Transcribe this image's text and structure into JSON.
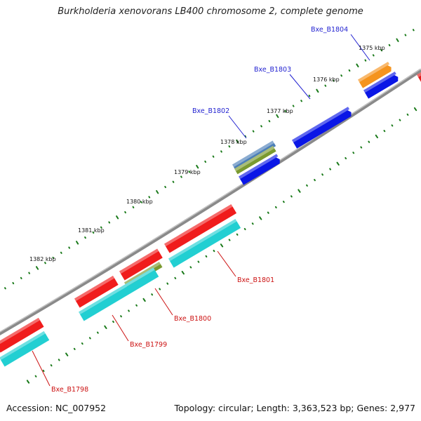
{
  "title": "Burkholderia xenovorans LB400 chromosome 2, complete genome",
  "footer": {
    "accession_label": "Accession:",
    "accession": "NC_007952",
    "topology_label": "Topology:",
    "topology": "circular",
    "length_label": "Length:",
    "length": "3,363,523 bp",
    "genes_label": "Genes:",
    "genes": "2,977"
  },
  "colors": {
    "backbone": "#8a8a8a",
    "tick_dots": "#1a7a1a",
    "forward_label": "#1f1fd0",
    "reverse_label": "#cc1111",
    "leader_forward": "#1f1fd0",
    "leader_reverse": "#cc1111",
    "gene_red": "#f01c1c",
    "gene_cyan": "#22cfd2",
    "gene_blue": "#0a16e6",
    "gene_orange": "#f5941e",
    "gene_olive": "#7a9a30",
    "gene_steel": "#4d7fb8",
    "gene_stub_red": "#e51a1a"
  },
  "ticks": [
    {
      "label": "1375 kbp",
      "leader": false
    },
    {
      "label": "1376 kbp",
      "leader": false
    },
    {
      "label": "1377 kbp",
      "leader": false
    },
    {
      "label": "1378 kbp",
      "leader": false
    },
    {
      "label": "1379 kbp",
      "leader": false
    },
    {
      "label": "1380 kbp",
      "leader": false
    },
    {
      "label": "1381 kbp",
      "leader": false
    },
    {
      "label": "1382 kbp",
      "leader": false
    }
  ],
  "genes": [
    {
      "label": "Bxe_B1804",
      "strand": "forward"
    },
    {
      "label": "Bxe_B1803",
      "strand": "forward"
    },
    {
      "label": "Bxe_B1802",
      "strand": "forward"
    },
    {
      "label": "Bxe_B1801",
      "strand": "reverse"
    },
    {
      "label": "Bxe_B1800",
      "strand": "reverse"
    },
    {
      "label": "Bxe_B1799",
      "strand": "reverse"
    },
    {
      "label": "Bxe_B1798",
      "strand": "reverse"
    }
  ]
}
